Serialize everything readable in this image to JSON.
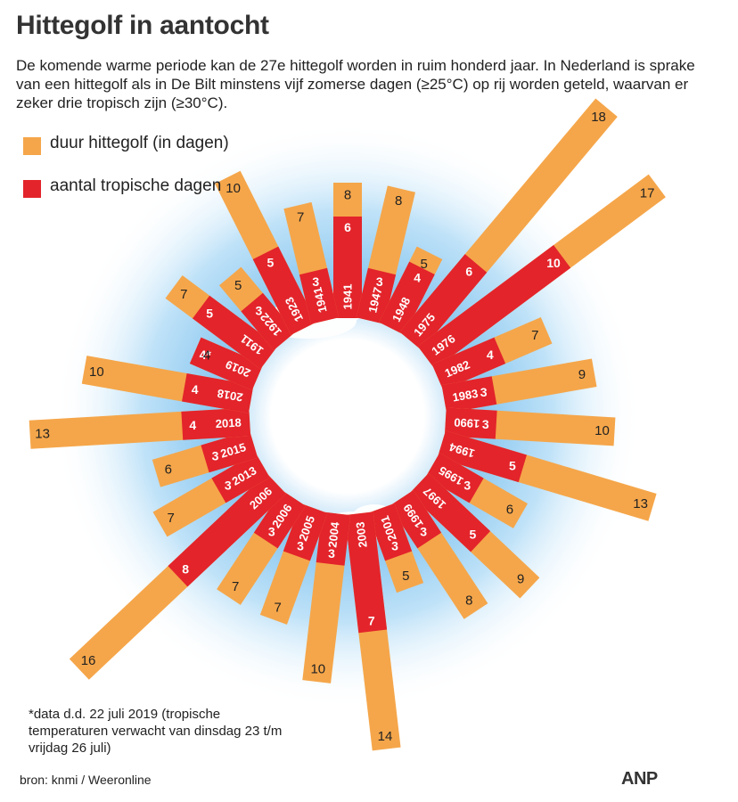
{
  "header": {
    "title": "Hittegolf in aantocht",
    "subtitle": "De komende warme periode kan de 27e hittegolf worden in ruim honderd jaar. In Nederland is sprake van een hittegolf als in De Bilt minstens vijf zomerse dagen (≥25°C) op rij worden geteld, waarvan er zeker drie tropisch zijn (≥30°C)."
  },
  "legend": {
    "duration": "duur hittegolf (in dagen)",
    "tropical": "aantal tropische dagen"
  },
  "colors": {
    "duration": "#f5a64a",
    "tropical": "#e3242b",
    "sky": "#6fb6e6"
  },
  "footnote": "*data d.d. 22 juli 2019 (tropische temperaturen verwacht van dinsdag 23 t/m vrijdag 26 juli)",
  "source": "bron:  knmi / Weeronline",
  "agency": "ANP",
  "chart_data": {
    "type": "radial-bar",
    "title": "Hittegolf in aantocht",
    "series": [
      {
        "name": "duur hittegolf (in dagen)"
      },
      {
        "name": "aantal tropische dagen"
      }
    ],
    "entries": [
      {
        "year": "1941",
        "duration": 8,
        "tropical": 6
      },
      {
        "year": "1947",
        "duration": 8,
        "tropical": 3
      },
      {
        "year": "1948",
        "duration": 5,
        "tropical": 4
      },
      {
        "year": "1975",
        "duration": 18,
        "tropical": 6
      },
      {
        "year": "1976",
        "duration": 17,
        "tropical": 10
      },
      {
        "year": "1982",
        "duration": 7,
        "tropical": 4
      },
      {
        "year": "1983",
        "duration": 9,
        "tropical": 3
      },
      {
        "year": "1990",
        "duration": 10,
        "tropical": 3
      },
      {
        "year": "1994",
        "duration": 13,
        "tropical": 5
      },
      {
        "year": "1995",
        "duration": 6,
        "tropical": 3
      },
      {
        "year": "1997",
        "duration": 9,
        "tropical": 5
      },
      {
        "year": "1999",
        "duration": 8,
        "tropical": 3
      },
      {
        "year": "2001",
        "duration": 5,
        "tropical": 3
      },
      {
        "year": "2003",
        "duration": 14,
        "tropical": 7
      },
      {
        "year": "2004",
        "duration": 10,
        "tropical": 3
      },
      {
        "year": "2005",
        "duration": 7,
        "tropical": 3
      },
      {
        "year": "2006",
        "duration": 7,
        "tropical": 3
      },
      {
        "year": "2006",
        "duration": 16,
        "tropical": 8
      },
      {
        "year": "2013",
        "duration": 7,
        "tropical": 3
      },
      {
        "year": "2015",
        "duration": 6,
        "tropical": 3
      },
      {
        "year": "2018",
        "duration": 13,
        "tropical": 4
      },
      {
        "year": "2018",
        "duration": 10,
        "tropical": 4
      },
      {
        "year": "2019",
        "duration": 4,
        "tropical": "4*"
      },
      {
        "year": "1911",
        "duration": 7,
        "tropical": 5
      },
      {
        "year": "1922",
        "duration": 5,
        "tropical": 3
      },
      {
        "year": "1923",
        "duration": 10,
        "tropical": 5
      },
      {
        "year": "1941",
        "duration": 7,
        "tropical": 3
      }
    ]
  }
}
